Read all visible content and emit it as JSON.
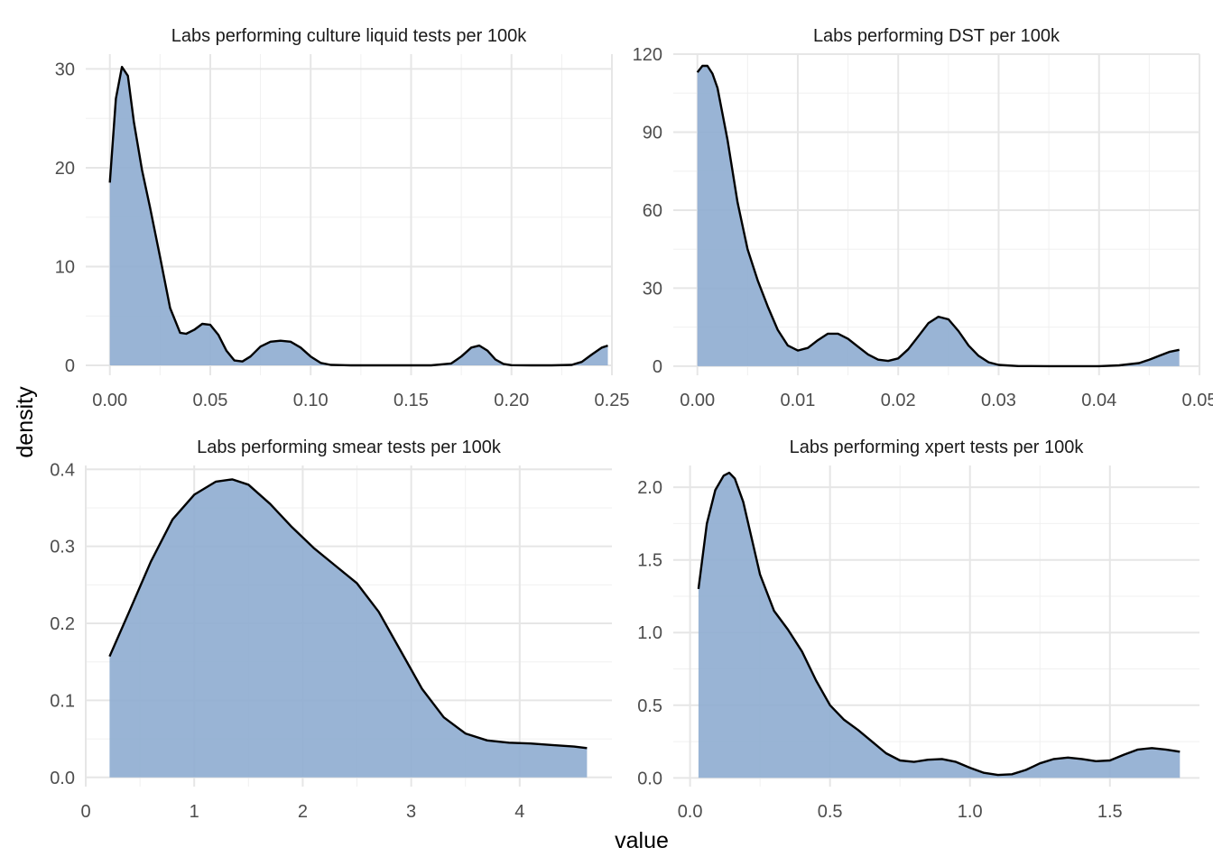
{
  "chart_data": {
    "type": "area",
    "xlabel": "value",
    "ylabel": "density",
    "fill_color": "#8eacd0",
    "line_color": "#000000",
    "grid": true,
    "legend": "none",
    "panels": [
      {
        "title": "Labs performing culture liquid tests per 100k",
        "xlim": [
          -0.012,
          0.25
        ],
        "ylim": [
          -1,
          31.5
        ],
        "xticks": [
          0.0,
          0.05,
          0.1,
          0.15,
          0.2,
          0.25
        ],
        "xtick_labels": [
          "0.00",
          "0.05",
          "0.10",
          "0.15",
          "0.20",
          "0.25"
        ],
        "yticks": [
          0,
          10,
          20,
          30
        ],
        "ytick_labels": [
          "0",
          "10",
          "20",
          "30"
        ],
        "x": [
          0.0,
          0.003,
          0.006,
          0.009,
          0.012,
          0.016,
          0.02,
          0.025,
          0.03,
          0.035,
          0.038,
          0.042,
          0.046,
          0.05,
          0.054,
          0.058,
          0.062,
          0.066,
          0.07,
          0.075,
          0.08,
          0.085,
          0.09,
          0.095,
          0.1,
          0.105,
          0.11,
          0.12,
          0.14,
          0.16,
          0.17,
          0.175,
          0.18,
          0.184,
          0.188,
          0.192,
          0.196,
          0.2,
          0.21,
          0.22,
          0.23,
          0.235,
          0.24,
          0.245,
          0.248
        ],
        "y": [
          18.5,
          27.0,
          30.2,
          29.3,
          24.6,
          19.8,
          16.0,
          11.0,
          5.8,
          3.3,
          3.2,
          3.6,
          4.2,
          4.1,
          3.1,
          1.5,
          0.5,
          0.4,
          0.9,
          1.9,
          2.4,
          2.5,
          2.4,
          1.8,
          0.9,
          0.25,
          0.05,
          0.0,
          0.0,
          0.0,
          0.2,
          0.9,
          1.8,
          2.0,
          1.5,
          0.6,
          0.15,
          0.02,
          0.0,
          0.0,
          0.05,
          0.35,
          1.1,
          1.8,
          2.0
        ]
      },
      {
        "title": "Labs performing DST per 100k",
        "xlim": [
          -0.0024,
          0.05
        ],
        "ylim": [
          -3.5,
          120
        ],
        "xticks": [
          0.0,
          0.01,
          0.02,
          0.03,
          0.04,
          0.05
        ],
        "xtick_labels": [
          "0.00",
          "0.01",
          "0.02",
          "0.03",
          "0.04",
          "0.05"
        ],
        "yticks": [
          0,
          30,
          60,
          90,
          120
        ],
        "ytick_labels": [
          "0",
          "30",
          "60",
          "90",
          "120"
        ],
        "x": [
          0.0,
          0.0005,
          0.001,
          0.0015,
          0.002,
          0.003,
          0.004,
          0.005,
          0.006,
          0.007,
          0.008,
          0.009,
          0.01,
          0.011,
          0.012,
          0.013,
          0.014,
          0.015,
          0.016,
          0.017,
          0.018,
          0.019,
          0.02,
          0.021,
          0.022,
          0.023,
          0.024,
          0.025,
          0.026,
          0.027,
          0.028,
          0.029,
          0.03,
          0.032,
          0.035,
          0.04,
          0.042,
          0.044,
          0.045,
          0.046,
          0.047,
          0.048
        ],
        "y": [
          113.0,
          115.5,
          115.5,
          112.5,
          107.0,
          87.0,
          63.0,
          45.0,
          33.0,
          23.0,
          14.0,
          8.0,
          6.0,
          7.0,
          10.0,
          12.5,
          12.5,
          10.5,
          7.5,
          4.5,
          2.5,
          2.0,
          3.0,
          6.5,
          11.5,
          16.5,
          19.0,
          18.0,
          13.5,
          8.0,
          4.0,
          1.5,
          0.5,
          0.05,
          0.0,
          0.0,
          0.3,
          1.2,
          2.5,
          4.0,
          5.5,
          6.3
        ]
      },
      {
        "title": "Labs performing smear tests per 100k",
        "xlim": [
          0,
          4.85
        ],
        "ylim": [
          -0.012,
          0.405
        ],
        "xticks": [
          0,
          1,
          2,
          3,
          4
        ],
        "xtick_labels": [
          "0",
          "1",
          "2",
          "3",
          "4"
        ],
        "yticks": [
          0.0,
          0.1,
          0.2,
          0.3,
          0.4
        ],
        "ytick_labels": [
          "0.0",
          "0.1",
          "0.2",
          "0.3",
          "0.4"
        ],
        "x": [
          0.22,
          0.4,
          0.6,
          0.8,
          1.0,
          1.2,
          1.35,
          1.5,
          1.7,
          1.9,
          2.1,
          2.3,
          2.5,
          2.7,
          2.9,
          3.1,
          3.3,
          3.5,
          3.7,
          3.9,
          4.1,
          4.3,
          4.5,
          4.62
        ],
        "y": [
          0.157,
          0.215,
          0.28,
          0.335,
          0.367,
          0.384,
          0.387,
          0.38,
          0.355,
          0.325,
          0.298,
          0.275,
          0.252,
          0.215,
          0.165,
          0.115,
          0.078,
          0.057,
          0.048,
          0.045,
          0.044,
          0.042,
          0.04,
          0.038
        ]
      },
      {
        "title": "Labs performing xpert tests per 100k",
        "xlim": [
          -0.06,
          1.82
        ],
        "ylim": [
          -0.06,
          2.15
        ],
        "xticks": [
          0.0,
          0.5,
          1.0,
          1.5
        ],
        "xtick_labels": [
          "0.0",
          "0.5",
          "1.0",
          "1.5"
        ],
        "yticks": [
          0.0,
          0.5,
          1.0,
          1.5,
          2.0
        ],
        "ytick_labels": [
          "0.0",
          "0.5",
          "1.0",
          "1.5",
          "2.0"
        ],
        "x": [
          0.03,
          0.06,
          0.09,
          0.12,
          0.14,
          0.16,
          0.19,
          0.22,
          0.25,
          0.3,
          0.35,
          0.4,
          0.45,
          0.5,
          0.55,
          0.6,
          0.65,
          0.7,
          0.75,
          0.8,
          0.85,
          0.9,
          0.95,
          1.0,
          1.05,
          1.1,
          1.15,
          1.2,
          1.25,
          1.3,
          1.35,
          1.4,
          1.45,
          1.5,
          1.55,
          1.6,
          1.65,
          1.7,
          1.75
        ],
        "y": [
          1.3,
          1.75,
          1.98,
          2.08,
          2.1,
          2.06,
          1.9,
          1.65,
          1.4,
          1.15,
          1.02,
          0.87,
          0.67,
          0.5,
          0.4,
          0.33,
          0.25,
          0.17,
          0.12,
          0.11,
          0.125,
          0.13,
          0.11,
          0.07,
          0.035,
          0.02,
          0.025,
          0.055,
          0.1,
          0.13,
          0.14,
          0.13,
          0.115,
          0.12,
          0.16,
          0.195,
          0.205,
          0.195,
          0.18
        ]
      }
    ]
  }
}
